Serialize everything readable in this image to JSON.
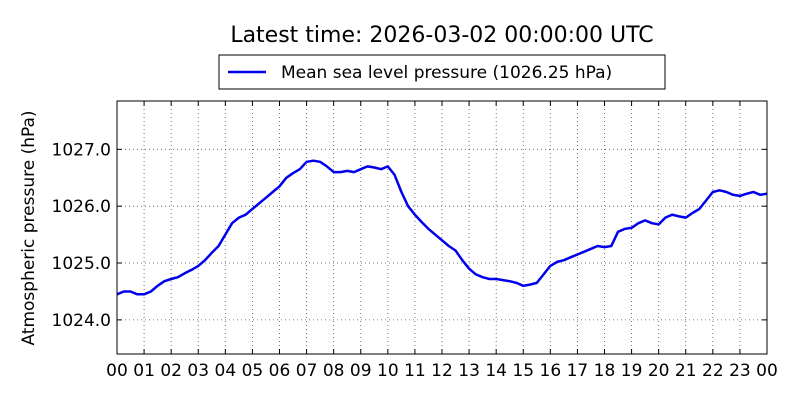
{
  "chart_data": {
    "type": "line",
    "title": "Latest time: 2026-03-02 00:00:00 UTC",
    "xlabel": "",
    "ylabel": "Atmospheric pressure (hPa)",
    "x_ticks": [
      "00",
      "01",
      "02",
      "03",
      "04",
      "05",
      "06",
      "07",
      "08",
      "09",
      "10",
      "11",
      "12",
      "13",
      "14",
      "15",
      "16",
      "17",
      "18",
      "19",
      "20",
      "21",
      "22",
      "23",
      "00"
    ],
    "x_range_hours": [
      0,
      24
    ],
    "y_ticks": [
      "1024.0",
      "1025.0",
      "1026.0",
      "1027.0"
    ],
    "ylim": [
      1023.4,
      1027.85
    ],
    "grid": true,
    "legend_position": "top-center",
    "series": [
      {
        "name": "Mean sea level pressure (1026.25 hPa)",
        "color": "#0000ee",
        "x_hours": [
          0,
          0.25,
          0.5,
          0.75,
          1,
          1.25,
          1.5,
          1.75,
          2,
          2.25,
          2.5,
          2.75,
          3,
          3.25,
          3.5,
          3.75,
          4,
          4.25,
          4.5,
          4.75,
          5,
          5.25,
          5.5,
          5.75,
          6,
          6.25,
          6.5,
          6.75,
          7,
          7.25,
          7.5,
          7.75,
          8,
          8.25,
          8.5,
          8.75,
          9,
          9.25,
          9.5,
          9.75,
          10,
          10.25,
          10.5,
          10.75,
          11,
          11.25,
          11.5,
          11.75,
          12,
          12.25,
          12.5,
          12.75,
          13,
          13.25,
          13.5,
          13.75,
          14,
          14.25,
          14.5,
          14.75,
          15,
          15.25,
          15.5,
          15.75,
          16,
          16.25,
          16.5,
          16.75,
          17,
          17.25,
          17.5,
          17.75,
          18,
          18.25,
          18.5,
          18.75,
          19,
          19.25,
          19.5,
          19.75,
          20,
          20.25,
          20.5,
          20.75,
          21,
          21.25,
          21.5,
          21.75,
          22,
          22.25,
          22.5,
          22.75,
          23,
          23.25,
          23.5,
          23.75,
          24
        ],
        "values": [
          1024.45,
          1024.5,
          1024.5,
          1024.45,
          1024.45,
          1024.5,
          1024.6,
          1024.68,
          1024.72,
          1024.75,
          1024.82,
          1024.88,
          1024.95,
          1025.05,
          1025.18,
          1025.3,
          1025.5,
          1025.7,
          1025.8,
          1025.85,
          1025.95,
          1026.05,
          1026.15,
          1026.25,
          1026.35,
          1026.5,
          1026.58,
          1026.65,
          1026.78,
          1026.8,
          1026.78,
          1026.7,
          1026.6,
          1026.6,
          1026.62,
          1026.6,
          1026.65,
          1026.7,
          1026.68,
          1026.65,
          1026.7,
          1026.55,
          1026.25,
          1026.0,
          1025.85,
          1025.72,
          1025.6,
          1025.5,
          1025.4,
          1025.3,
          1025.22,
          1025.05,
          1024.9,
          1024.8,
          1024.75,
          1024.72,
          1024.72,
          1024.7,
          1024.68,
          1024.65,
          1024.6,
          1024.62,
          1024.65,
          1024.8,
          1024.95,
          1025.02,
          1025.05,
          1025.1,
          1025.15,
          1025.2,
          1025.25,
          1025.3,
          1025.28,
          1025.3,
          1025.55,
          1025.6,
          1025.62,
          1025.7,
          1025.75,
          1025.7,
          1025.68,
          1025.8,
          1025.85,
          1025.82,
          1025.8,
          1025.88,
          1025.95,
          1026.1,
          1026.25,
          1026.28,
          1026.25,
          1026.2,
          1026.18,
          1026.22,
          1026.25,
          1026.2,
          1026.22
        ]
      }
    ]
  }
}
